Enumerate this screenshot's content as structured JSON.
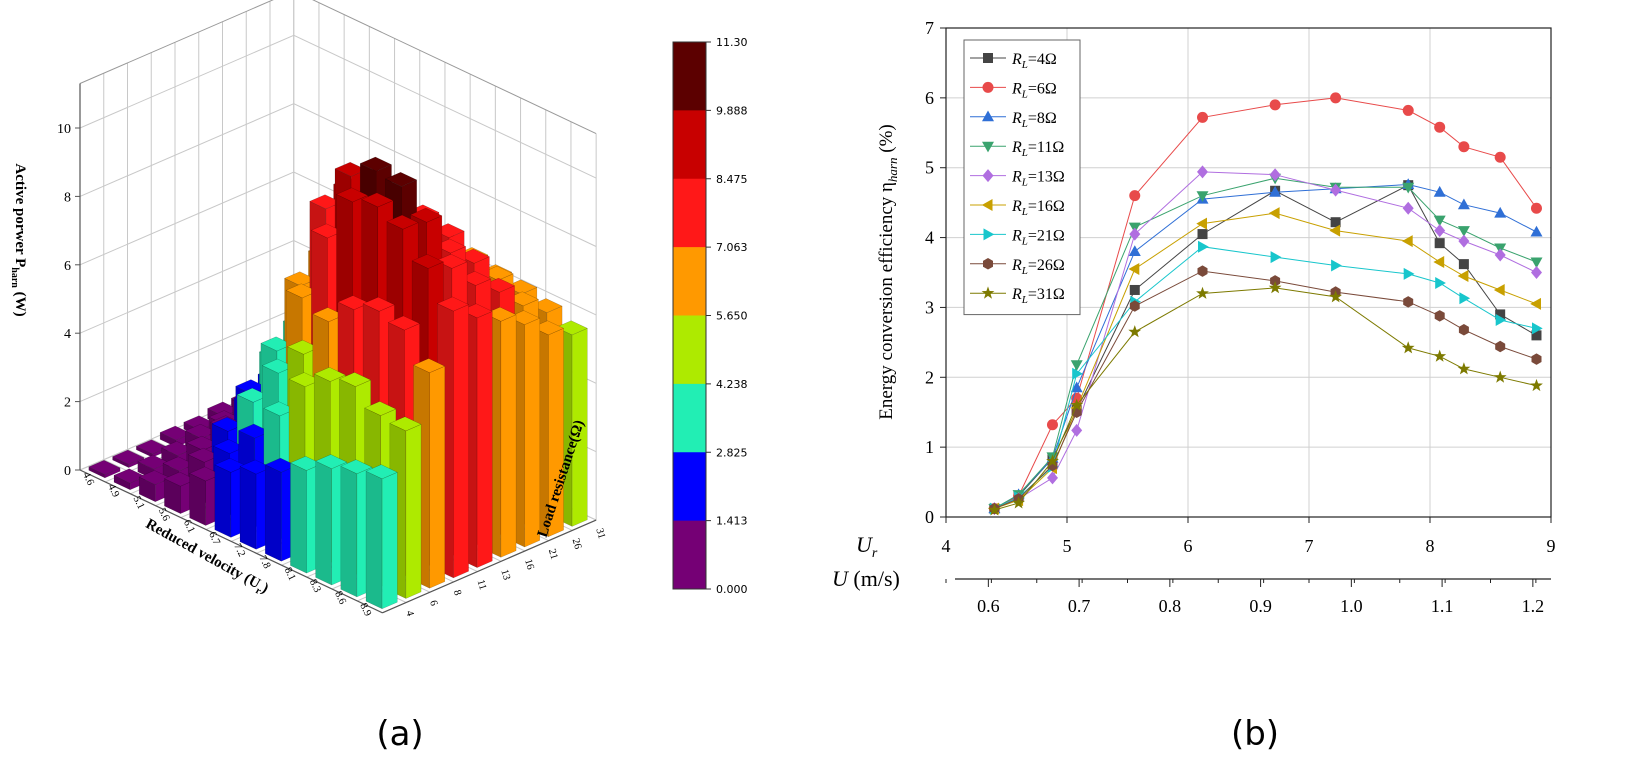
{
  "chart_data": [
    {
      "panel": "a",
      "type": "bar3d",
      "caption": "(a)",
      "zlabel": "Active porwer P_harn (W)",
      "zlabel_main": "Active porwer P",
      "zlabel_sub": "harn",
      "zlabel_end": " (W)",
      "xlabel": "Reduced velocity (U_r)",
      "xlabel_main": "Reduced velocity (U",
      "xlabel_sub": "r",
      "xlabel_end": ")",
      "ylabel": "Load resistance(Ω)",
      "x_ticks": [
        "4.6",
        "4.9",
        "5.1",
        "5.6",
        "6.1",
        "6.7",
        "7.2",
        "7.8",
        "8.1",
        "8.3",
        "8.6",
        "8.9"
      ],
      "y_ticks": [
        "4",
        "6",
        "8",
        "11",
        "13",
        "16",
        "21",
        "26",
        "31"
      ],
      "z_ticks": [
        "0",
        "2",
        "4",
        "6",
        "8",
        "10"
      ],
      "zlim": [
        0,
        11.3
      ],
      "colorbar_ticks": [
        "11.30",
        "9.888",
        "8.475",
        "7.063",
        "5.650",
        "4.238",
        "2.825",
        "1.413",
        "0.000"
      ],
      "colorbar_colors": [
        "#5c0000",
        "#c80000",
        "#ff1818",
        "#ff9900",
        "#aeea00",
        "#22eeb4",
        "#0000ff",
        "#750075"
      ],
      "values": [
        [
          0.1,
          0.2,
          0.5,
          0.8,
          1.3,
          1.9,
          2.2,
          2.6,
          3.0,
          3.4,
          3.6,
          3.8
        ],
        [
          0.1,
          0.3,
          0.6,
          1.2,
          1.8,
          2.6,
          3.6,
          4.8,
          5.3,
          5.5,
          5.0,
          4.9
        ],
        [
          0.1,
          0.4,
          0.9,
          1.8,
          3.0,
          4.2,
          5.1,
          6.4,
          7.1,
          7.4,
          7.2,
          6.3
        ],
        [
          0.2,
          0.6,
          1.2,
          2.6,
          4.2,
          6.1,
          8.2,
          9.6,
          9.8,
          9.5,
          8.7,
          7.8
        ],
        [
          0.2,
          0.7,
          1.6,
          3.3,
          5.8,
          8.4,
          9.7,
          10.2,
          10.1,
          9.4,
          8.4,
          7.3
        ],
        [
          0.3,
          0.9,
          2.0,
          3.9,
          6.3,
          8.6,
          9.2,
          9.0,
          8.7,
          8.2,
          7.6,
          6.9
        ],
        [
          0.3,
          1.0,
          2.2,
          4.1,
          5.9,
          7.5,
          8.0,
          8.2,
          8.0,
          7.6,
          7.1,
          6.5
        ],
        [
          0.3,
          0.9,
          2.0,
          3.7,
          5.1,
          6.4,
          6.9,
          7.1,
          7.0,
          6.8,
          6.4,
          5.9
        ],
        [
          0.2,
          0.8,
          1.7,
          3.1,
          4.2,
          5.3,
          5.8,
          6.1,
          6.2,
          6.1,
          5.9,
          5.6
        ]
      ]
    },
    {
      "panel": "b",
      "type": "line",
      "caption": "(b)",
      "ylabel": "Energy conversion efficiency η_harn (%)",
      "ylabel_main": "Energy conversion efficiency η",
      "ylabel_sub": "harn",
      "ylabel_end": " (%)",
      "xlabel": "U_r",
      "xlabel_main": "U",
      "xlabel_sub": "r",
      "xlabel2": "U (m/s)",
      "xlabel2_main": "U",
      "xlabel2_end": " (m/s)",
      "xlim": [
        4,
        9
      ],
      "ylim": [
        0,
        7
      ],
      "x_ticks": [
        "4",
        "5",
        "6",
        "7",
        "8",
        "9"
      ],
      "y_ticks": [
        "0",
        "1",
        "2",
        "3",
        "4",
        "5",
        "6",
        "7"
      ],
      "x2_ticks": [
        "0.6",
        "0.7",
        "0.8",
        "0.9",
        "1.0",
        "1.1",
        "1.2"
      ],
      "x2_tick_positions_ur": [
        4.35,
        5.1,
        5.85,
        6.6,
        7.35,
        8.1,
        8.85
      ],
      "grid": true,
      "legend_position": "top-left",
      "x": [
        4.4,
        4.6,
        4.88,
        5.08,
        5.56,
        6.12,
        6.72,
        7.22,
        7.82,
        8.08,
        8.28,
        8.58,
        8.88
      ],
      "series": [
        {
          "name": "R_L=4Ω",
          "label_main": "R",
          "label_sub": "L",
          "label_end": "=4Ω",
          "color": "#444444",
          "marker": "square",
          "values": [
            0.12,
            0.3,
            0.84,
            1.53,
            3.25,
            4.05,
            4.67,
            4.22,
            4.75,
            3.92,
            3.62,
            2.9,
            2.6
          ]
        },
        {
          "name": "R_L=6Ω",
          "label_main": "R",
          "label_sub": "L",
          "label_end": "=6Ω",
          "color": "#e84a4a",
          "marker": "circle",
          "values": [
            0.12,
            0.3,
            1.32,
            1.7,
            4.6,
            5.72,
            5.9,
            6.0,
            5.82,
            5.58,
            5.3,
            5.15,
            4.42
          ]
        },
        {
          "name": "R_L=8Ω",
          "label_main": "R",
          "label_sub": "L",
          "label_end": "=8Ω",
          "color": "#2f6fd6",
          "marker": "triangle-up",
          "values": [
            0.12,
            0.32,
            0.84,
            1.85,
            3.8,
            4.55,
            4.65,
            4.7,
            4.76,
            4.65,
            4.47,
            4.35,
            4.08
          ]
        },
        {
          "name": "R_L=11Ω",
          "label_main": "R",
          "label_sub": "L",
          "label_end": "=11Ω",
          "color": "#3aa36e",
          "marker": "triangle-down",
          "values": [
            0.12,
            0.32,
            0.86,
            2.18,
            4.15,
            4.6,
            4.85,
            4.72,
            4.72,
            4.25,
            4.1,
            3.85,
            3.65
          ]
        },
        {
          "name": "R_L=13Ω",
          "label_main": "R",
          "label_sub": "L",
          "label_end": "=13Ω",
          "color": "#b06ee0",
          "marker": "diamond",
          "values": [
            0.12,
            0.26,
            0.56,
            1.24,
            4.05,
            4.94,
            4.9,
            4.68,
            4.42,
            4.1,
            3.95,
            3.75,
            3.5
          ]
        },
        {
          "name": "R_L=16Ω",
          "label_main": "R",
          "label_sub": "L",
          "label_end": "=16Ω",
          "color": "#c8a000",
          "marker": "triangle-left",
          "values": [
            0.12,
            0.24,
            0.7,
            1.56,
            3.55,
            4.2,
            4.35,
            4.1,
            3.95,
            3.65,
            3.45,
            3.25,
            3.05
          ]
        },
        {
          "name": "R_L=21Ω",
          "label_main": "R",
          "label_sub": "L",
          "label_end": "=21Ω",
          "color": "#18c6cc",
          "marker": "triangle-right",
          "values": [
            0.12,
            0.28,
            0.72,
            2.05,
            3.08,
            3.87,
            3.72,
            3.6,
            3.48,
            3.35,
            3.13,
            2.82,
            2.7
          ]
        },
        {
          "name": "R_L=26Ω",
          "label_main": "R",
          "label_sub": "L",
          "label_end": "=26Ω",
          "color": "#7a4a3a",
          "marker": "hexagon",
          "values": [
            0.12,
            0.26,
            0.74,
            1.5,
            3.02,
            3.52,
            3.38,
            3.22,
            3.08,
            2.88,
            2.68,
            2.44,
            2.26
          ]
        },
        {
          "name": "R_L=31Ω",
          "label_main": "R",
          "label_sub": "L",
          "label_end": "=31Ω",
          "color": "#7d7a00",
          "marker": "star",
          "values": [
            0.1,
            0.2,
            0.8,
            1.6,
            2.65,
            3.2,
            3.28,
            3.15,
            2.42,
            2.3,
            2.12,
            2.0,
            1.88
          ]
        }
      ]
    }
  ]
}
